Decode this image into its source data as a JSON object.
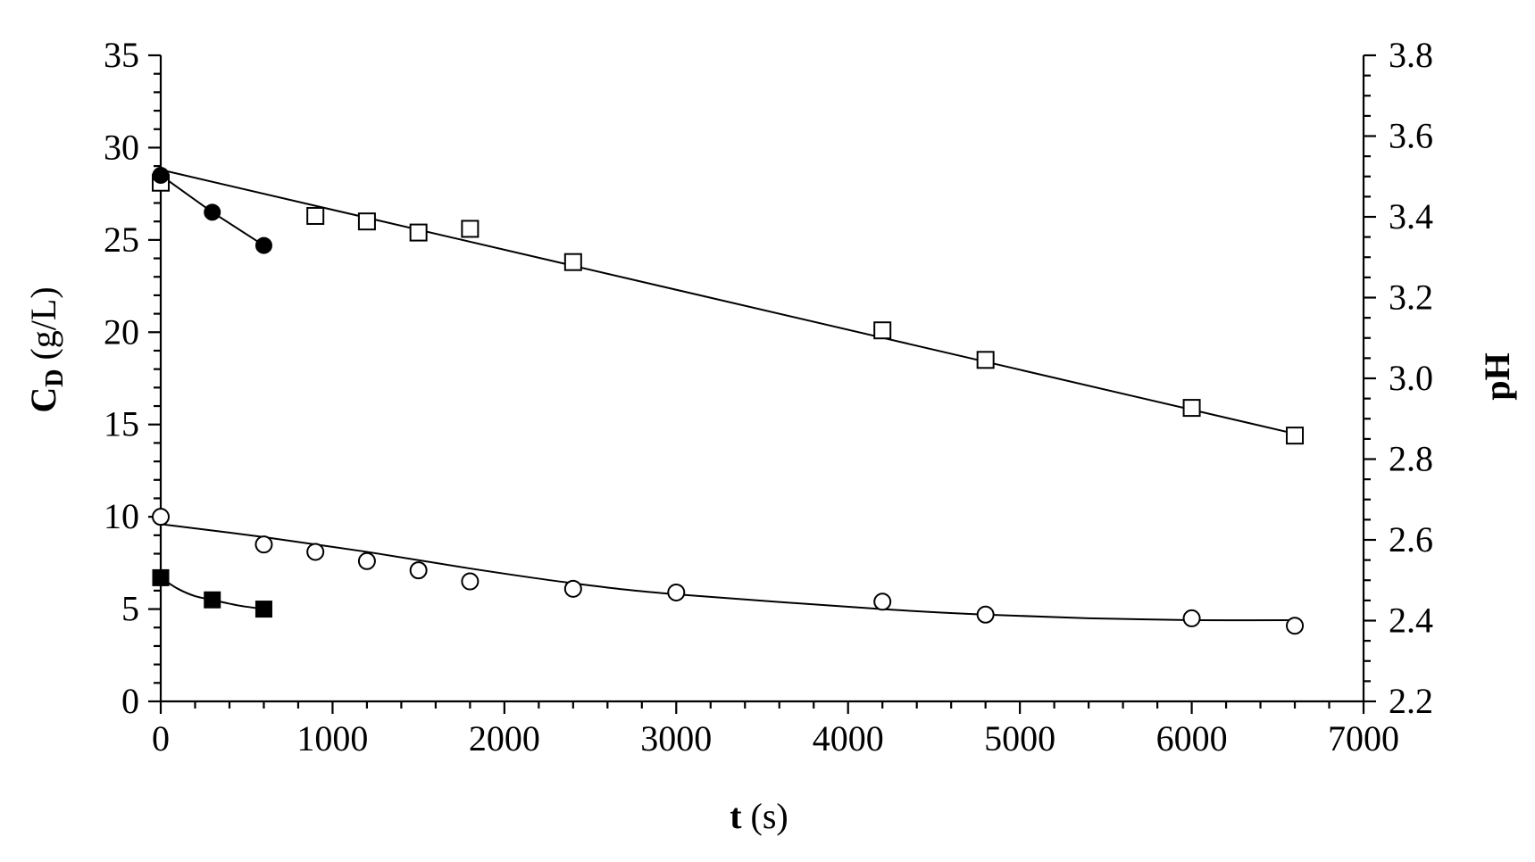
{
  "chart_data": {
    "type": "scatter",
    "xlabel": {
      "main": "t",
      "unit": " (s)"
    },
    "ylabel_left": {
      "main": "C",
      "sub": "D",
      "unit": " (g/L)"
    },
    "ylabel_right": "pH",
    "xlim": [
      0,
      7000
    ],
    "ylim_left": [
      0,
      35
    ],
    "ylim_right": [
      2.2,
      3.8
    ],
    "x_ticks": [
      0,
      1000,
      2000,
      3000,
      4000,
      5000,
      6000,
      7000
    ],
    "y_left_ticks": [
      0,
      5,
      10,
      15,
      20,
      25,
      30,
      35
    ],
    "y_right_ticks": [
      "2.2",
      "2.4",
      "2.6",
      "2.8",
      "3.0",
      "3.2",
      "3.4",
      "3.6",
      "3.8"
    ],
    "grid": false,
    "legend": "none",
    "series": [
      {
        "marker": "open-square",
        "axis": "left",
        "points": [
          [
            0,
            28.1
          ],
          [
            900,
            26.3
          ],
          [
            1200,
            26.0
          ],
          [
            1500,
            25.4
          ],
          [
            1800,
            25.6
          ],
          [
            2400,
            23.8
          ],
          [
            4200,
            20.1
          ],
          [
            4800,
            18.5
          ],
          [
            6000,
            15.9
          ],
          [
            6600,
            14.4
          ]
        ],
        "fit": [
          [
            0,
            28.8
          ],
          [
            6600,
            14.5
          ]
        ],
        "fit_style": "linear"
      },
      {
        "marker": "filled-circle",
        "axis": "left",
        "points": [
          [
            0,
            28.5
          ],
          [
            300,
            26.5
          ],
          [
            600,
            24.7
          ]
        ],
        "fit": [
          [
            0,
            28.5
          ],
          [
            300,
            26.5
          ],
          [
            600,
            24.7
          ]
        ],
        "fit_style": "polyline"
      },
      {
        "marker": "open-circle",
        "axis": "left",
        "points": [
          [
            0,
            10.0
          ],
          [
            600,
            8.5
          ],
          [
            900,
            8.1
          ],
          [
            1200,
            7.6
          ],
          [
            1500,
            7.1
          ],
          [
            1800,
            6.5
          ],
          [
            2400,
            6.1
          ],
          [
            3000,
            5.9
          ],
          [
            4200,
            5.4
          ],
          [
            4800,
            4.7
          ],
          [
            6000,
            4.5
          ],
          [
            6600,
            4.1
          ]
        ],
        "fit": [
          [
            0,
            9.6
          ],
          [
            600,
            8.9
          ],
          [
            1200,
            8.1
          ],
          [
            1800,
            7.2
          ],
          [
            2400,
            6.4
          ],
          [
            3000,
            5.8
          ],
          [
            4200,
            5.0
          ],
          [
            4800,
            4.7
          ],
          [
            5400,
            4.5
          ],
          [
            6000,
            4.4
          ],
          [
            6600,
            4.4
          ]
        ],
        "fit_style": "smooth"
      },
      {
        "marker": "filled-square",
        "axis": "left",
        "points": [
          [
            0,
            6.7
          ],
          [
            300,
            5.5
          ],
          [
            600,
            5.0
          ]
        ],
        "fit": [
          [
            0,
            6.7
          ],
          [
            100,
            6.1
          ],
          [
            200,
            5.7
          ],
          [
            300,
            5.5
          ],
          [
            450,
            5.2
          ],
          [
            600,
            5.0
          ]
        ],
        "fit_style": "smooth"
      }
    ]
  }
}
